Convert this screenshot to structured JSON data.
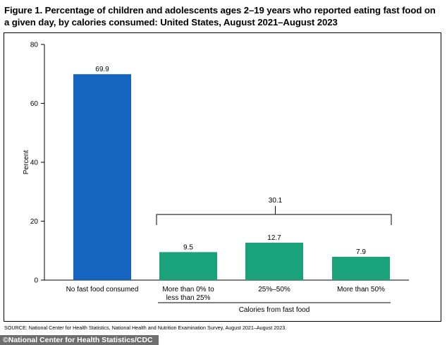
{
  "title": "Figure 1. Percentage of children and adolescents ages 2–19 years who reported eating fast food on a given day, by calories consumed: United States, August 2021–August 2023",
  "source_note": "SOURCE: National Center for Health Statistics, National Health and Nutrition Examination Survey, August 2021–August 2023.",
  "credit": "National Center for Health Statistics/CDC",
  "colors": {
    "blue_bar": "#1565c0",
    "green_bar": "#1aa37a",
    "axis": "#000000"
  },
  "chart_data": {
    "type": "bar",
    "title": "Figure 1. Percentage of children and adolescents ages 2–19 years who reported eating fast food on a given day, by calories consumed: United States, August 2021–August 2023",
    "ylabel": "Percent",
    "xlabel": "",
    "ylim": [
      0,
      80
    ],
    "yticks": [
      0,
      20,
      40,
      60,
      80
    ],
    "grid": false,
    "categories": [
      "No fast food consumed",
      "More than 0% to less than 25%",
      "25%–50%",
      "More than 50%"
    ],
    "category_lines": [
      [
        "No fast food consumed"
      ],
      [
        "More than 0% to",
        "less than 25%"
      ],
      [
        "25%–50%"
      ],
      [
        "More than 50%"
      ]
    ],
    "values": [
      69.9,
      9.5,
      12.7,
      7.9
    ],
    "value_labels": [
      "69.9",
      "9.5",
      "12.7",
      "7.9"
    ],
    "bar_colors": [
      "blue",
      "green",
      "green",
      "green"
    ],
    "group": {
      "label": "Calories from fast food",
      "members": [
        1,
        2,
        3
      ],
      "total": 30.1,
      "total_label": "30.1"
    }
  }
}
